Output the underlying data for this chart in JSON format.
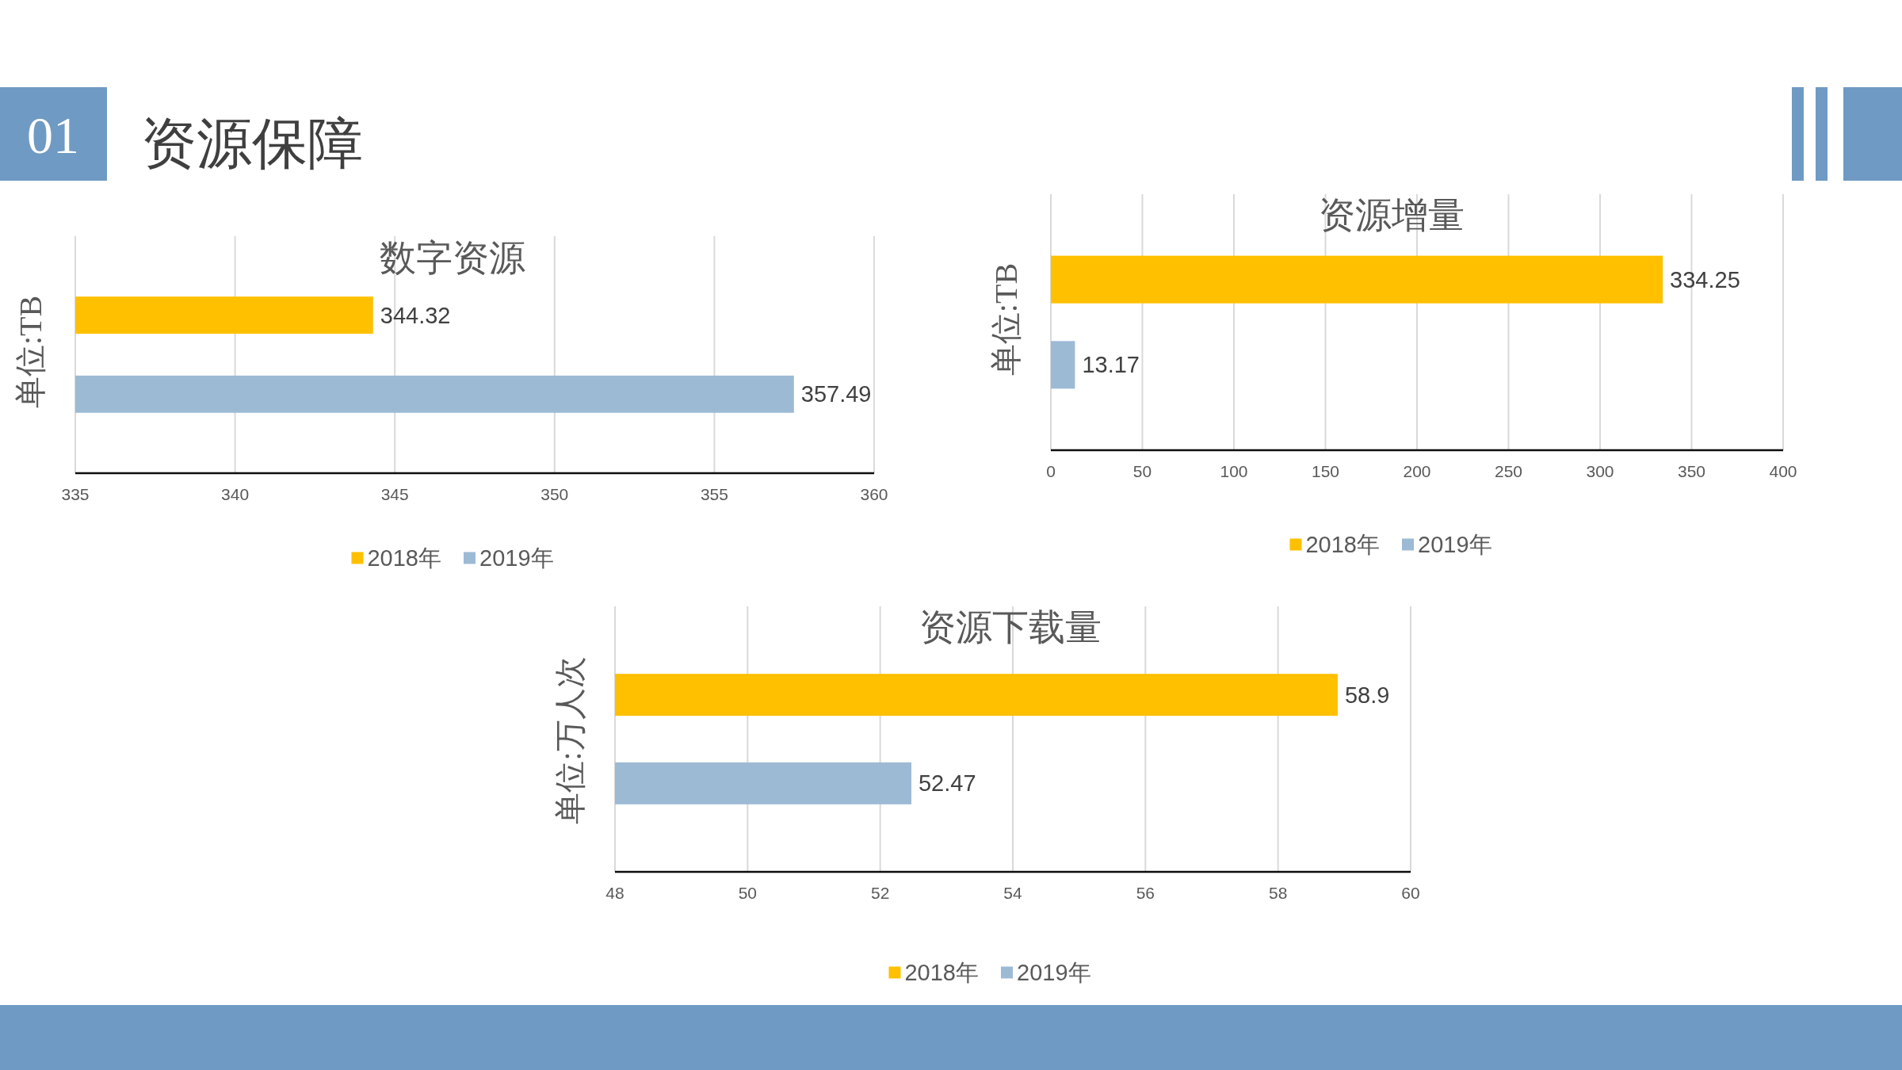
{
  "chart_data": [
    {
      "type": "other",
      "title": "资源保障",
      "annotations": [
        "01"
      ]
    },
    {
      "type": "bar",
      "orientation": "horizontal",
      "title": "数字资源",
      "ylabel": "单位:TB",
      "categories": [
        null
      ],
      "series": [
        {
          "name": "2018年",
          "color": "#ffc000",
          "values": [
            344.32
          ]
        },
        {
          "name": "2019年",
          "color": "#9dbad5",
          "values": [
            357.49
          ]
        }
      ],
      "xlim": [
        335,
        360
      ],
      "xticks": [
        335,
        340,
        345,
        350,
        355,
        360
      ],
      "grid": "x",
      "legend": "bottom",
      "data_labels": true
    },
    {
      "type": "bar",
      "orientation": "horizontal",
      "title": "资源增量",
      "ylabel": "单位:TB",
      "categories": [
        null
      ],
      "series": [
        {
          "name": "2018年",
          "color": "#ffc000",
          "values": [
            334.25
          ]
        },
        {
          "name": "2019年",
          "color": "#9dbad5",
          "values": [
            13.17
          ]
        }
      ],
      "xlim": [
        0,
        400
      ],
      "xticks": [
        0,
        50,
        100,
        150,
        200,
        250,
        300,
        350,
        400
      ],
      "grid": "x",
      "legend": "bottom",
      "data_labels": true
    },
    {
      "type": "bar",
      "orientation": "horizontal",
      "title": "资源下载量",
      "ylabel": "单位:万人次",
      "categories": [
        null
      ],
      "series": [
        {
          "name": "2018年",
          "color": "#ffc000",
          "values": [
            58.9
          ]
        },
        {
          "name": "2019年",
          "color": "#9dbad5",
          "values": [
            52.47
          ]
        }
      ],
      "xlim": [
        48,
        60
      ],
      "xticks": [
        48,
        50,
        52,
        54,
        56,
        58,
        60
      ],
      "grid": "x",
      "legend": "bottom",
      "data_labels": true
    }
  ]
}
